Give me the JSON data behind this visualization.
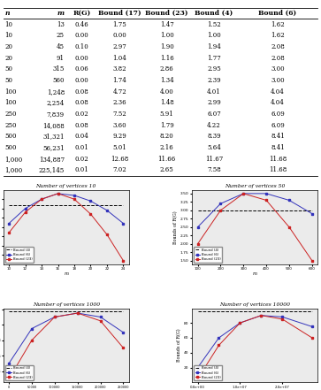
{
  "table_headers": [
    "n",
    "m",
    "R(G)",
    "Bound (17)",
    "Bound (23)",
    "Bound (4)",
    "Bound (6)"
  ],
  "table_rows": [
    [
      "10",
      "13",
      "0.46",
      "1.75",
      "1.47",
      "1.52",
      "1.62"
    ],
    [
      "10",
      "25",
      "0.00",
      "0.00",
      "1.00",
      "1.00",
      "1.62"
    ],
    [
      "20",
      "45",
      "0.10",
      "2.97",
      "1.90",
      "1.94",
      "2.08"
    ],
    [
      "20",
      "91",
      "0.00",
      "1.04",
      "1.16",
      "1.77",
      "2.08"
    ],
    [
      "50",
      "315",
      "0.06",
      "3.82",
      "2.86",
      "2.95",
      "3.00"
    ],
    [
      "50",
      "560",
      "0.00",
      "1.74",
      "1.34",
      "2.39",
      "3.00"
    ],
    [
      "100",
      "1,248",
      "0.08",
      "4.72",
      "4.00",
      "4.01",
      "4.04"
    ],
    [
      "100",
      "2,254",
      "0.08",
      "2.36",
      "1.48",
      "2.99",
      "4.04"
    ],
    [
      "250",
      "7,839",
      "0.02",
      "7.52",
      "5.91",
      "6.07",
      "6.09"
    ],
    [
      "250",
      "14,088",
      "0.08",
      "3.60",
      "1.79",
      "4.22",
      "6.09"
    ],
    [
      "500",
      "31,321",
      "0.04",
      "9.29",
      "8.20",
      "8.39",
      "8.41"
    ],
    [
      "500",
      "56,231",
      "0.01",
      "5.01",
      "2.16",
      "5.64",
      "8.41"
    ],
    [
      "1,000",
      "134,887",
      "0.02",
      "12.68",
      "11.66",
      "11.67",
      "11.68"
    ],
    [
      "1,000",
      "225,145",
      "0.01",
      "7.02",
      "2.65",
      "7.58",
      "11.68"
    ]
  ],
  "subplot_titles": [
    "Number of vertices 10",
    "Number of vertices 50",
    "Number of vertices 1000",
    "Number of vertices 10000"
  ],
  "subplot1_x": [
    10,
    12,
    14,
    16,
    18,
    20,
    22,
    24
  ],
  "subplot1_bound4": [
    1.52,
    1.6,
    1.65,
    1.68,
    1.67,
    1.64,
    1.59,
    1.52
  ],
  "subplot1_bound6": [
    1.62,
    1.62,
    1.62,
    1.62,
    1.62,
    1.62,
    1.62,
    1.62
  ],
  "subplot1_bound23": [
    1.47,
    1.58,
    1.65,
    1.68,
    1.65,
    1.57,
    1.46,
    1.32
  ],
  "subplot2_x": [
    100,
    200,
    300,
    400,
    500,
    600
  ],
  "subplot2_bound4": [
    2.5,
    3.2,
    3.5,
    3.5,
    3.3,
    2.9
  ],
  "subplot2_bound6": [
    3.0,
    3.0,
    3.0,
    3.0,
    3.0,
    3.0
  ],
  "subplot2_bound23": [
    2.0,
    3.0,
    3.5,
    3.3,
    2.5,
    1.5
  ],
  "subplot3_x": [
    0,
    50000,
    100000,
    150000,
    200000,
    250000
  ],
  "subplot3_bound4": [
    5.0,
    9.5,
    11.0,
    11.5,
    11.0,
    9.0
  ],
  "subplot3_bound6": [
    11.68,
    11.68,
    11.68,
    11.68,
    11.68,
    11.68
  ],
  "subplot3_bound23": [
    3.0,
    8.0,
    11.0,
    11.5,
    10.5,
    7.0
  ],
  "subplot4_x": [
    0.0,
    5000000,
    10000000,
    15000000,
    20000000,
    27000000
  ],
  "subplot4_bound4": [
    20,
    60,
    80,
    90,
    88,
    75
  ],
  "subplot4_bound6": [
    95,
    95,
    95,
    95,
    95,
    95
  ],
  "subplot4_bound23": [
    5,
    50,
    80,
    90,
    85,
    60
  ]
}
